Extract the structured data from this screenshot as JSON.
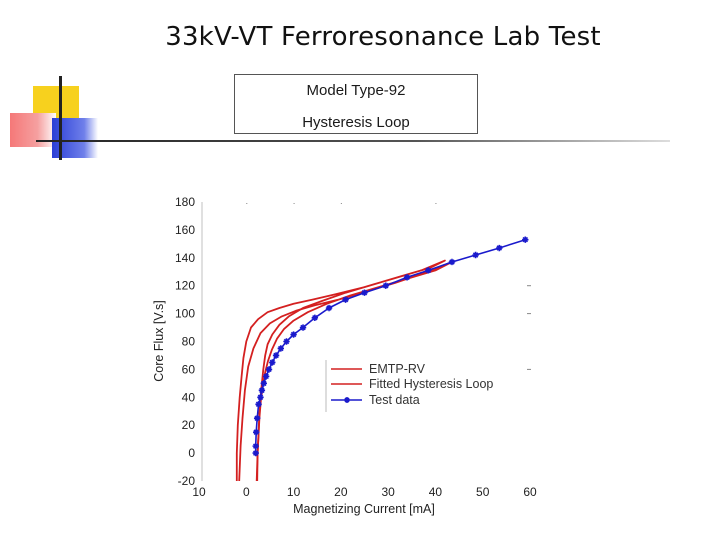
{
  "slide": {
    "title": "33kV-VT Ferroresonance Lab Test",
    "box": {
      "line1": "Model Type-92",
      "line2": "Hysteresis Loop"
    }
  },
  "chart_data": {
    "type": "line",
    "xlabel": "Magnetizing Current [mA]",
    "ylabel": "Core Flux [V.s]",
    "xlim": [
      -10,
      60
    ],
    "ylim": [
      -20,
      180
    ],
    "x_ticks": [
      "10",
      "0",
      "10",
      "20",
      "30",
      "40",
      "50",
      "60"
    ],
    "y_ticks": [
      "180",
      "160",
      "140",
      "120",
      "100",
      "80",
      "60",
      "40",
      "20",
      "0",
      "-20"
    ],
    "legend_position": "lower-right",
    "series": [
      {
        "name": "EMTP-RV",
        "color": "#d42020",
        "x": [
          -2,
          -2,
          -1.8,
          -1.4,
          -1.0,
          -0.6,
          0.0,
          1.0,
          2.5,
          4.5,
          7.0,
          10.0,
          14.0,
          19.0,
          25.0,
          31.0,
          37.0,
          42.0,
          39.0,
          33.0,
          27.0,
          21.0,
          16.0,
          12.0,
          9.0,
          7.0,
          5.5,
          4.5,
          4.0,
          3.6,
          3.3,
          3.0,
          2.8,
          2.6,
          2.4,
          2.2
        ],
        "y": [
          -20,
          0,
          20,
          40,
          55,
          68,
          80,
          90,
          96,
          101,
          104,
          107,
          110,
          114,
          119,
          125,
          131,
          138,
          133,
          127,
          121,
          115,
          109,
          104,
          98,
          92,
          85,
          78,
          70,
          60,
          50,
          40,
          30,
          15,
          0,
          -20
        ]
      },
      {
        "name": "Fitted Hysteresis Loop",
        "color": "#d42020",
        "x": [
          -1.5,
          -1.2,
          -0.8,
          -0.3,
          0.4,
          1.5,
          3.0,
          5.0,
          7.5,
          10.5,
          14.5,
          19.5,
          25.5,
          31.5,
          37.5,
          43.5,
          40.0,
          34.0,
          28.0,
          22.0,
          17.0,
          13.0,
          10.0,
          8.0,
          6.5,
          5.4,
          4.6,
          4.0,
          3.5,
          3.1,
          2.8,
          2.6,
          2.4,
          2.3
        ],
        "y": [
          -20,
          5,
          25,
          45,
          62,
          75,
          86,
          93,
          98,
          102,
          106,
          110,
          116,
          122,
          129,
          137,
          131,
          125,
          119,
          113,
          107,
          101,
          95,
          89,
          82,
          74,
          66,
          58,
          48,
          38,
          26,
          14,
          0,
          -20
        ]
      },
      {
        "name": "Test data",
        "color": "#1a1acc",
        "x": [
          2.0,
          2.0,
          2.1,
          2.3,
          2.6,
          3.0,
          3.3,
          3.7,
          4.2,
          4.8,
          5.5,
          6.3,
          7.3,
          8.5,
          10.0,
          12.0,
          14.5,
          17.5,
          21.0,
          25.0,
          29.5,
          34.0,
          38.5,
          43.5,
          48.5,
          53.5,
          59.0
        ],
        "y": [
          0,
          5,
          15,
          25,
          35,
          40,
          45,
          50,
          55,
          60,
          65,
          70,
          75,
          80,
          85,
          90,
          97,
          104,
          110,
          115,
          120,
          126,
          131,
          137,
          142,
          147,
          153
        ]
      }
    ]
  }
}
